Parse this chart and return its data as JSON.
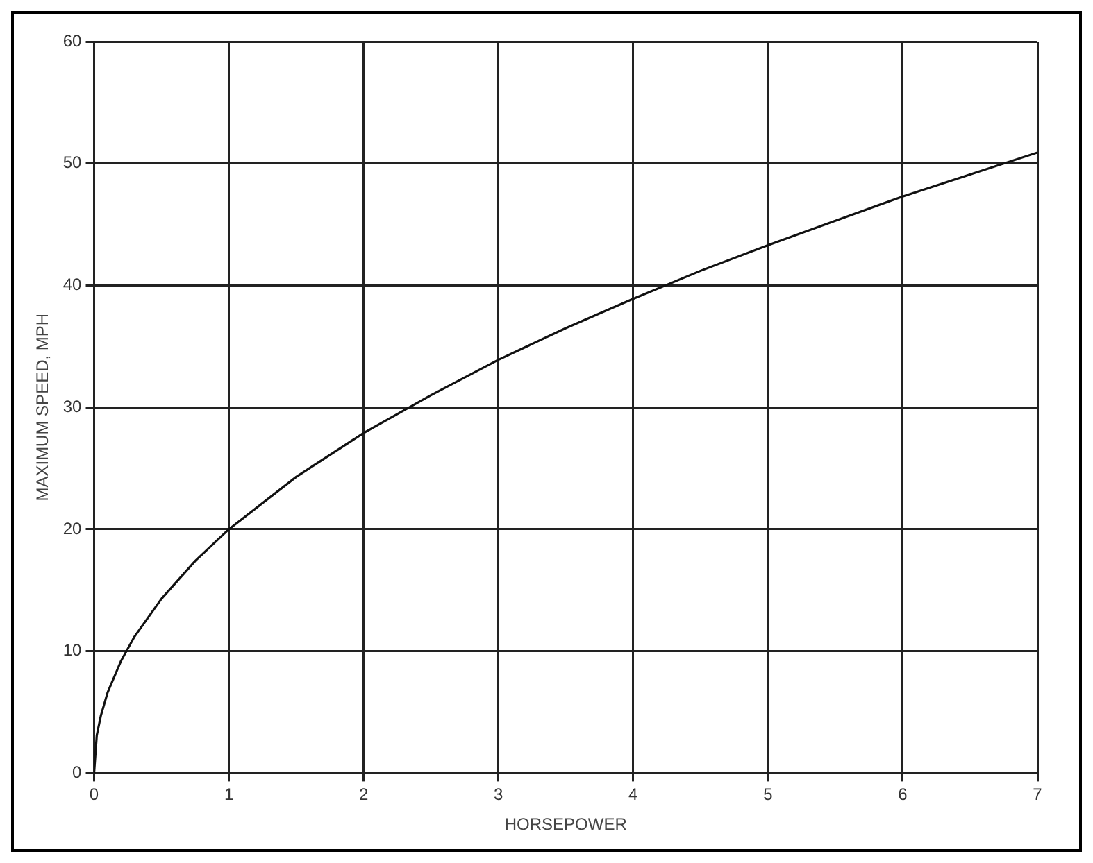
{
  "chart_data": {
    "type": "line",
    "xlabel": "HORSEPOWER",
    "ylabel": "MAXIMUM SPEED, MPH",
    "x": [
      0,
      0.02,
      0.05,
      0.1,
      0.2,
      0.3,
      0.5,
      0.75,
      1,
      1.5,
      2,
      2.5,
      3,
      3.5,
      4,
      4.5,
      5,
      5.5,
      6,
      6.5,
      7
    ],
    "series": [
      {
        "color": "#111111",
        "values": [
          0,
          3.1,
          4.7,
          6.6,
          9.2,
          11.2,
          14.3,
          17.4,
          20,
          24.3,
          27.9,
          31,
          33.9,
          36.5,
          38.9,
          41.2,
          43.3,
          45.3,
          47.3,
          49.1,
          50.9
        ]
      }
    ],
    "xlim": [
      0,
      7
    ],
    "xticks": [
      0,
      1,
      2,
      3,
      4,
      5,
      6,
      7
    ],
    "ylim": [
      0,
      60
    ],
    "yticks": [
      0,
      10,
      20,
      30,
      40,
      50,
      60
    ],
    "grid": true,
    "legend": false,
    "marker": "none",
    "line_style": "solid"
  }
}
